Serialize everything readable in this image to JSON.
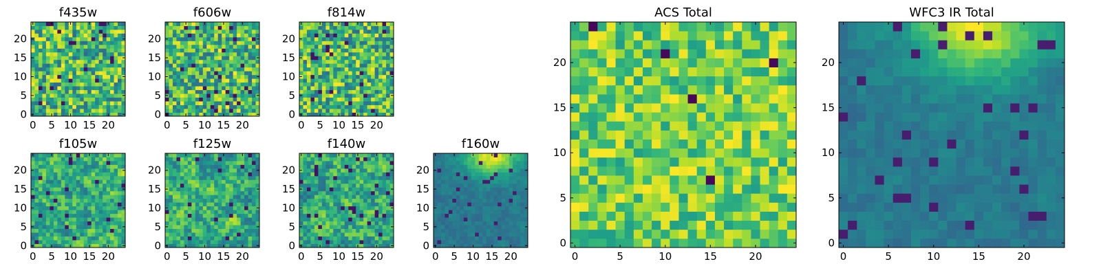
{
  "chart_data": [
    {
      "type": "heatmap",
      "title": "f435w",
      "grid_size": 25,
      "xlim": [
        0,
        24
      ],
      "ylim": [
        0,
        24
      ],
      "xticks": [
        "0",
        "5",
        "10",
        "15",
        "20"
      ],
      "yticks": [
        "0",
        "5",
        "10",
        "15",
        "20"
      ],
      "colormap": "viridis",
      "seed": 11,
      "pattern": "noise-bright"
    },
    {
      "type": "heatmap",
      "title": "f606w",
      "grid_size": 25,
      "xlim": [
        0,
        24
      ],
      "ylim": [
        0,
        24
      ],
      "xticks": [
        "0",
        "5",
        "10",
        "15",
        "20"
      ],
      "yticks": [
        "0",
        "5",
        "10",
        "15",
        "20"
      ],
      "colormap": "viridis",
      "seed": 23,
      "pattern": "noise-bright"
    },
    {
      "type": "heatmap",
      "title": "f814w",
      "grid_size": 25,
      "xlim": [
        0,
        24
      ],
      "ylim": [
        0,
        24
      ],
      "xticks": [
        "0",
        "5",
        "10",
        "15",
        "20"
      ],
      "yticks": [
        "0",
        "5",
        "10",
        "15",
        "20"
      ],
      "colormap": "viridis",
      "seed": 37,
      "pattern": "noise-bright"
    },
    {
      "type": "heatmap",
      "title": "f105w",
      "grid_size": 25,
      "xlim": [
        0,
        24
      ],
      "ylim": [
        0,
        24
      ],
      "xticks": [
        "0",
        "5",
        "10",
        "15",
        "20"
      ],
      "yticks": [
        "0",
        "5",
        "10",
        "15",
        "20"
      ],
      "colormap": "viridis",
      "seed": 41,
      "pattern": "noise-smooth"
    },
    {
      "type": "heatmap",
      "title": "f125w",
      "grid_size": 25,
      "xlim": [
        0,
        24
      ],
      "ylim": [
        0,
        24
      ],
      "xticks": [
        "0",
        "5",
        "10",
        "15",
        "20"
      ],
      "yticks": [
        "0",
        "5",
        "10",
        "15",
        "20"
      ],
      "colormap": "viridis",
      "seed": 53,
      "pattern": "noise-smooth"
    },
    {
      "type": "heatmap",
      "title": "f140w",
      "grid_size": 25,
      "xlim": [
        0,
        24
      ],
      "ylim": [
        0,
        24
      ],
      "xticks": [
        "0",
        "5",
        "10",
        "15",
        "20"
      ],
      "yticks": [
        "0",
        "5",
        "10",
        "15",
        "20"
      ],
      "colormap": "viridis",
      "seed": 67,
      "pattern": "noise-smooth"
    },
    {
      "type": "heatmap",
      "title": "f160w",
      "grid_size": 25,
      "xlim": [
        0,
        24
      ],
      "ylim": [
        0,
        24
      ],
      "xticks": [
        "0",
        "5",
        "10",
        "15",
        "20"
      ],
      "yticks": [
        "0",
        "5",
        "10",
        "15",
        "20"
      ],
      "colormap": "viridis",
      "seed": 79,
      "pattern": "dim-top-bright"
    },
    {
      "type": "heatmap",
      "title": "ACS Total",
      "grid_size": 25,
      "xlim": [
        0,
        24
      ],
      "ylim": [
        0,
        24
      ],
      "xticks": [
        "0",
        "5",
        "10",
        "15",
        "20"
      ],
      "yticks": [
        "0",
        "5",
        "10",
        "15",
        "20"
      ],
      "colormap": "viridis",
      "seed": 97,
      "pattern": "bright-sparse-dark"
    },
    {
      "type": "heatmap",
      "title": "WFC3 IR Total",
      "grid_size": 25,
      "xlim": [
        0,
        24
      ],
      "ylim": [
        0,
        24
      ],
      "xticks": [
        "0",
        "5",
        "10",
        "15",
        "20"
      ],
      "yticks": [
        "0",
        "5",
        "10",
        "15",
        "20"
      ],
      "colormap": "viridis",
      "seed": 113,
      "pattern": "dim-top-bright"
    }
  ],
  "colors": {
    "viridis": [
      "#440154",
      "#482878",
      "#3e4989",
      "#31688e",
      "#26828e",
      "#1f9e89",
      "#35b779",
      "#6ece58",
      "#b5de2b",
      "#fde725"
    ],
    "frame": "#000000",
    "background": "#ffffff"
  }
}
